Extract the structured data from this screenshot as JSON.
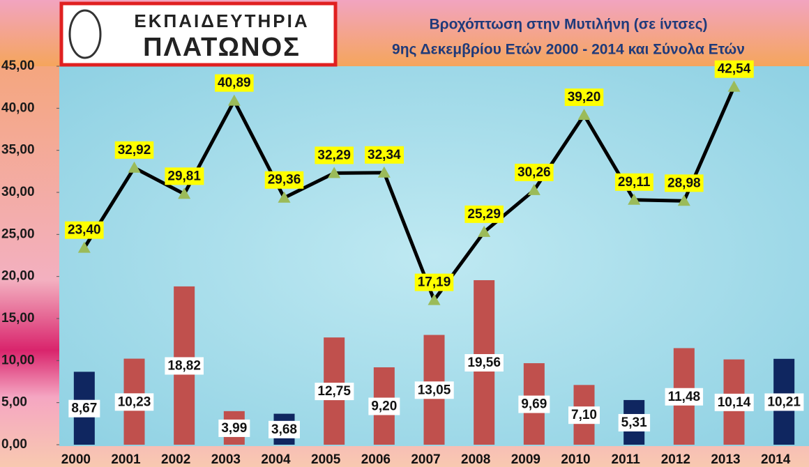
{
  "logo": {
    "line1": "ΕΚΠΑΙΔΕΥΤΗΡΙΑ",
    "line2": "ΠΛΑΤΩΝΟΣ"
  },
  "chart_data": {
    "type": "combo",
    "title": "Βροχόπτωση στην Μυτιλήνη (σε ίντσες)",
    "subtitle": "9ης Δεκεμβρίου Ετών 2000 - 2014 και Σύνολα Ετών",
    "categories": [
      "2000",
      "2001",
      "2002",
      "2003",
      "2004",
      "2005",
      "2006",
      "2007",
      "2008",
      "2009",
      "2010",
      "2011",
      "2012",
      "2013",
      "2014"
    ],
    "ylim": [
      0,
      45
    ],
    "yticks": [
      {
        "value": 0,
        "label": "0,00"
      },
      {
        "value": 5,
        "label": "5,00"
      },
      {
        "value": 10,
        "label": "10,00"
      },
      {
        "value": 15,
        "label": "15,00"
      },
      {
        "value": 20,
        "label": "20,00"
      },
      {
        "value": 25,
        "label": "25,00"
      },
      {
        "value": 30,
        "label": "30,00"
      },
      {
        "value": 35,
        "label": "35,00"
      },
      {
        "value": 40,
        "label": "40,00"
      },
      {
        "value": 45,
        "label": "45,00"
      }
    ],
    "series": [
      {
        "type": "bar",
        "colors": [
          "#0f2660",
          "#c0504d",
          "#c0504d",
          "#c0504d",
          "#0f2660",
          "#c0504d",
          "#c0504d",
          "#c0504d",
          "#c0504d",
          "#c0504d",
          "#c0504d",
          "#0f2660",
          "#c0504d",
          "#c0504d",
          "#0f2660"
        ],
        "values": [
          8.67,
          10.23,
          18.82,
          3.99,
          3.68,
          12.75,
          9.2,
          13.05,
          19.56,
          9.69,
          7.1,
          5.31,
          11.48,
          10.14,
          10.21
        ],
        "value_labels": [
          "8,67",
          "10,23",
          "18,82",
          "3,99",
          "3,68",
          "12,75",
          "9,20",
          "13,05",
          "19,56",
          "9,69",
          "7,10",
          "5,31",
          "11,48",
          "10,14",
          "10,21"
        ]
      },
      {
        "type": "line",
        "color": "#000000",
        "marker_color": "#9bbb59",
        "values": [
          23.4,
          32.92,
          29.81,
          40.89,
          29.36,
          32.29,
          32.34,
          17.19,
          25.29,
          30.26,
          39.2,
          29.11,
          28.98,
          42.54,
          null
        ],
        "value_labels": [
          "23,40",
          "32,92",
          "29,81",
          "40,89",
          "29,36",
          "32,29",
          "32,34",
          "17,19",
          "25,29",
          "30,26",
          "39,20",
          "29,11",
          "28,98",
          "42,54",
          null
        ]
      }
    ]
  }
}
